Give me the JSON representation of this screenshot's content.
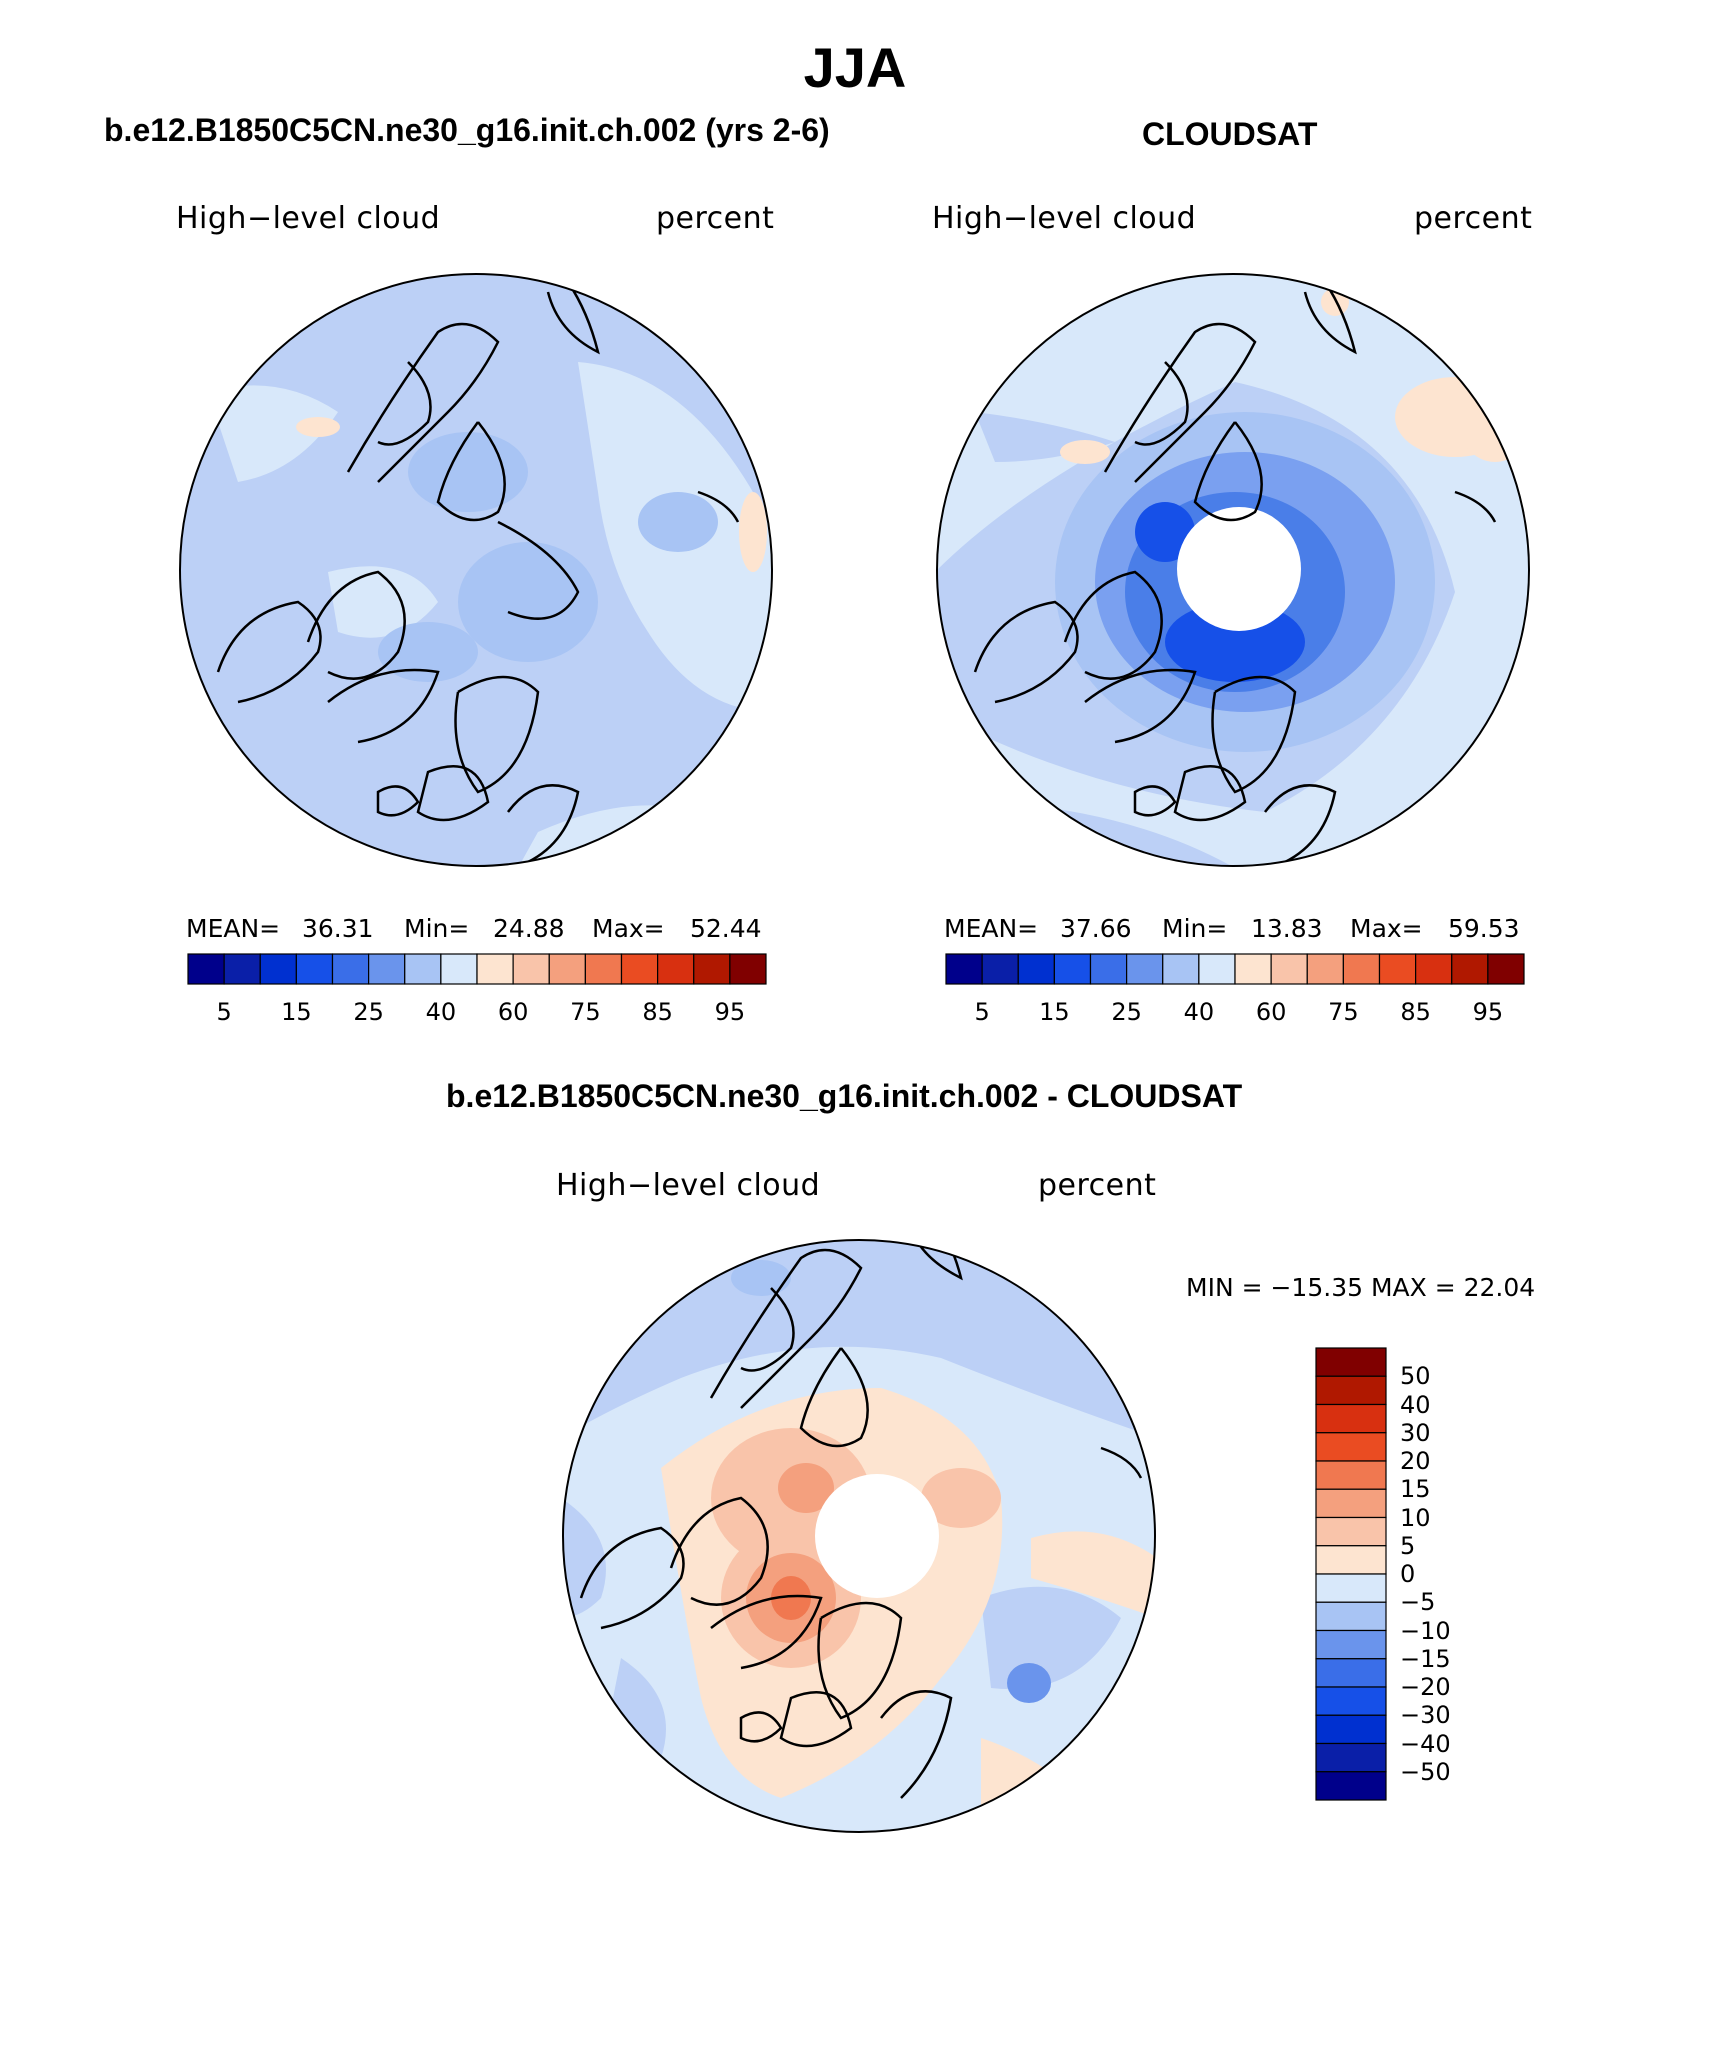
{
  "figure": {
    "title": "JJA",
    "colors": {
      "seq": [
        "#00008b",
        "#0a1fa8",
        "#0030d0",
        "#1650e8",
        "#3a6ee8",
        "#6a94ec",
        "#a8c4f4",
        "#d8e8fa",
        "#fde4d0",
        "#f9c4aa",
        "#f4a07e",
        "#f07850",
        "#ea4c22",
        "#d83010",
        "#b01800",
        "#800000"
      ],
      "div": [
        "#00008b",
        "#0a1fa8",
        "#0030d0",
        "#1650e8",
        "#3a6ee8",
        "#6a94ec",
        "#a8c4f4",
        "#d8e8fa",
        "#fde4d0",
        "#f9c4aa",
        "#f4a07e",
        "#f07850",
        "#ea4c22",
        "#d83010",
        "#b01800",
        "#800000"
      ]
    },
    "panels": [
      {
        "header": "b.e12.B1850C5CN.ne30_g16.init.ch.002 (yrs 2-6)",
        "left_label": "High−level cloud",
        "right_label": "percent",
        "stats": {
          "mean_label": "MEAN=",
          "mean": "36.31",
          "min_label": "Min=",
          "min": "24.88",
          "max_label": "Max=",
          "max": "52.44"
        },
        "ticks": [
          "5",
          "15",
          "25",
          "40",
          "60",
          "75",
          "85",
          "95"
        ]
      },
      {
        "header": "CLOUDSAT",
        "left_label": "High−level cloud",
        "right_label": "percent",
        "stats": {
          "mean_label": "MEAN=",
          "mean": "37.66",
          "min_label": "Min=",
          "min": "13.83",
          "max_label": "Max=",
          "max": "59.53"
        },
        "ticks": [
          "5",
          "15",
          "25",
          "40",
          "60",
          "75",
          "85",
          "95"
        ]
      },
      {
        "header": "b.e12.B1850C5CN.ne30_g16.init.ch.002 - CLOUDSAT",
        "left_label": "High−level cloud",
        "right_label": "percent",
        "minmax": "MIN = −15.35 MAX =   22.04",
        "ticks": [
          "50",
          "40",
          "30",
          "20",
          "15",
          "10",
          "5",
          "0",
          "−5",
          "−10",
          "−15",
          "−20",
          "−30",
          "−40",
          "−50"
        ]
      }
    ]
  }
}
